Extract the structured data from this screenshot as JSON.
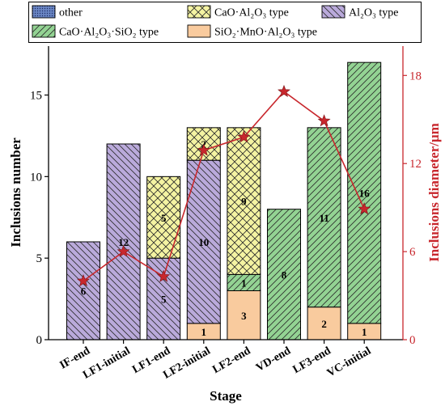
{
  "chart_data": {
    "type": "bar",
    "stacked": true,
    "categories": [
      "IF-end",
      "LF1-initial",
      "LF1-end",
      "LF2-initial",
      "LF2-end",
      "VD-end",
      "LF3-end",
      "VC-initial"
    ],
    "xlabel": "Stage",
    "ylabel": "Inclusions number",
    "y2label": "Inclusions diameter/μm",
    "ylim": [
      0,
      18
    ],
    "yticks": [
      0,
      5,
      10,
      15
    ],
    "y2lim": [
      0,
      20
    ],
    "y2ticks": [
      0,
      6,
      12,
      18
    ],
    "grid": false,
    "legend": "top-outside",
    "data_labels": true,
    "series": [
      {
        "name": "other",
        "color": "#6a86c4",
        "hatch": "dots",
        "values": [
          0,
          0,
          0,
          0,
          0,
          0,
          0,
          0
        ]
      },
      {
        "name": "CaO·Al₂O₃ type",
        "color": "#f4f3a2",
        "hatch": "cross",
        "values": [
          0,
          0,
          5,
          2,
          9,
          0,
          0,
          0
        ]
      },
      {
        "name": "Al₂O₃ type",
        "color": "#baaadb",
        "hatch": "back-diagonal",
        "values": [
          6,
          12,
          5,
          10,
          0,
          0,
          0,
          0
        ]
      },
      {
        "name": "CaO·Al₂O₃·SiO₂ type",
        "color": "#93d393",
        "hatch": "diagonal",
        "values": [
          0,
          0,
          0,
          0,
          1,
          8,
          11,
          16
        ]
      },
      {
        "name": "SiO₂·MnO·Al₂O₃ type",
        "color": "#f9cb9e",
        "hatch": "none",
        "values": [
          0,
          0,
          0,
          1,
          3,
          0,
          2,
          1
        ]
      }
    ],
    "line": {
      "axis": "right",
      "color": "#c8272d",
      "marker": "star",
      "values": [
        4.0,
        6.0,
        4.3,
        12.9,
        13.8,
        16.9,
        14.9,
        8.9
      ]
    },
    "axis_colors": {
      "right": "#c8272d"
    }
  }
}
